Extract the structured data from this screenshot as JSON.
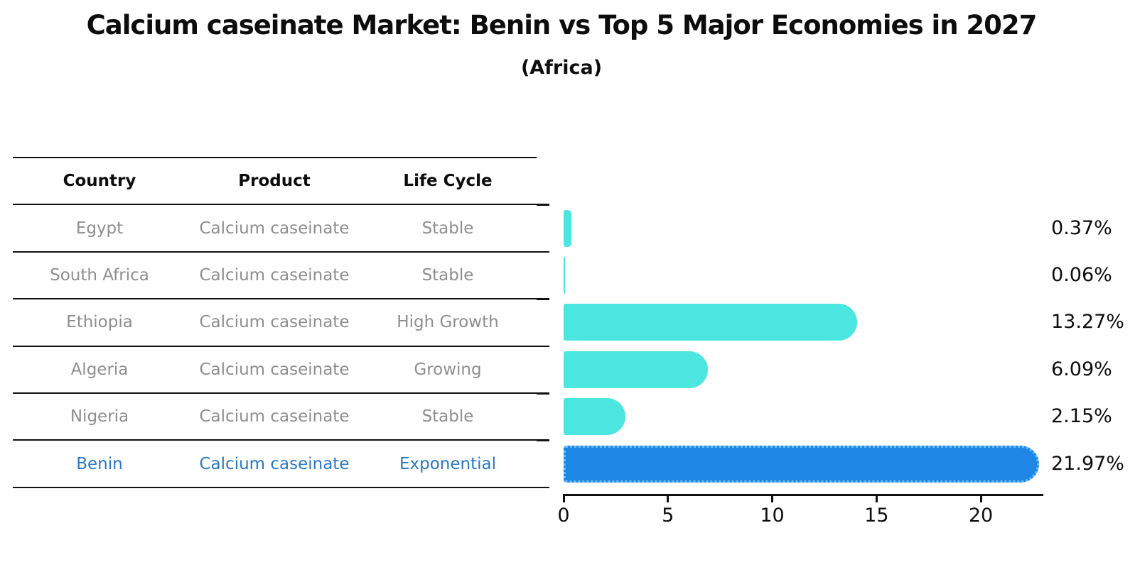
{
  "title": "Calcium caseinate Market: Benin vs Top 5 Major Economies in 2027",
  "subtitle": "(Africa)",
  "table": {
    "headers": {
      "country": "Country",
      "product": "Product",
      "life_cycle": "Life Cycle"
    }
  },
  "chart_data": {
    "type": "bar",
    "orientation": "horizontal",
    "title": "Calcium caseinate Market: Benin vs Top 5 Major Economies in 2027",
    "subtitle": "(Africa)",
    "xlim": [
      0,
      23
    ],
    "x_ticks": [
      0,
      5,
      10,
      15,
      20
    ],
    "grid": false,
    "legend": false,
    "rows": [
      {
        "country": "Egypt",
        "product": "Calcium caseinate",
        "life_cycle": "Stable",
        "value": 0.37,
        "label": "0.37%",
        "highlight": false
      },
      {
        "country": "South Africa",
        "product": "Calcium caseinate",
        "life_cycle": "Stable",
        "value": 0.06,
        "label": "0.06%",
        "highlight": false
      },
      {
        "country": "Ethiopia",
        "product": "Calcium caseinate",
        "life_cycle": "High Growth",
        "value": 13.27,
        "label": "13.27%",
        "highlight": false
      },
      {
        "country": "Algeria",
        "product": "Calcium caseinate",
        "life_cycle": "Growing",
        "value": 6.09,
        "label": "6.09%",
        "highlight": false
      },
      {
        "country": "Nigeria",
        "product": "Calcium caseinate",
        "life_cycle": "Stable",
        "value": 2.15,
        "label": "2.15%",
        "highlight": false
      },
      {
        "country": "Benin",
        "product": "Calcium caseinate",
        "life_cycle": "Exponential",
        "value": 21.97,
        "label": "21.97%",
        "highlight": true
      }
    ],
    "colors": {
      "bar": "#4AE6DF",
      "highlight_bar": "#1E87E5",
      "highlight_border": "#6CBDF8",
      "highlight_text": "#2878C8",
      "cell_text": "#8E8E8E",
      "text": "#0D0D0D"
    }
  }
}
